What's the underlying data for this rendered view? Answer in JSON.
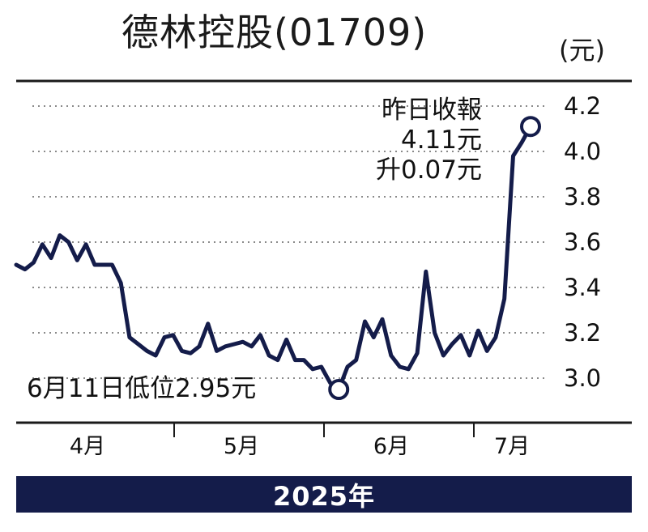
{
  "title": "德林控股(01709)",
  "unit": "(元)",
  "year_label": "2025年",
  "annotations": {
    "high_line1": "昨日收報",
    "high_line2": "4.11元",
    "high_line3": "升0.07元",
    "low": "6月11日低位2.95元"
  },
  "colors": {
    "line": "#141c4a",
    "year_bar": "#141c4a",
    "grid": "#8a8a8a"
  },
  "chart_data": {
    "type": "line",
    "title": "德林控股(01709)",
    "ylabel": "(元)",
    "xlabel": "2025年",
    "ylim": [
      2.9,
      4.27
    ],
    "y_ticks": [
      "4.2",
      "4.0",
      "3.8",
      "3.6",
      "3.4",
      "3.2",
      "3.0"
    ],
    "x_tick_labels": [
      "4月",
      "5月",
      "6月",
      "7月"
    ],
    "grid": "horizontal dotted",
    "series": [
      {
        "values": [
          3.5,
          3.48,
          3.51,
          3.59,
          3.53,
          3.63,
          3.6,
          3.52,
          3.59,
          3.5,
          3.5,
          3.5,
          3.42,
          3.18,
          3.15,
          3.12,
          3.1,
          3.18,
          3.19,
          3.12,
          3.11,
          3.14,
          3.24,
          3.12,
          3.14,
          3.15,
          3.16,
          3.14,
          3.19,
          3.1,
          3.08,
          3.17,
          3.08,
          3.08,
          3.04,
          3.05,
          2.98,
          2.95,
          3.05,
          3.08,
          3.25,
          3.18,
          3.26,
          3.1,
          3.05,
          3.04,
          3.11,
          3.47,
          3.2,
          3.1,
          3.15,
          3.19,
          3.1,
          3.21,
          3.12,
          3.18,
          3.35,
          3.98,
          4.04,
          4.11
        ]
      }
    ],
    "highlights": [
      {
        "label": "昨日收報 4.11元 升0.07元",
        "value": 4.11
      },
      {
        "label": "6月11日低位2.95元",
        "value": 2.95
      }
    ]
  }
}
